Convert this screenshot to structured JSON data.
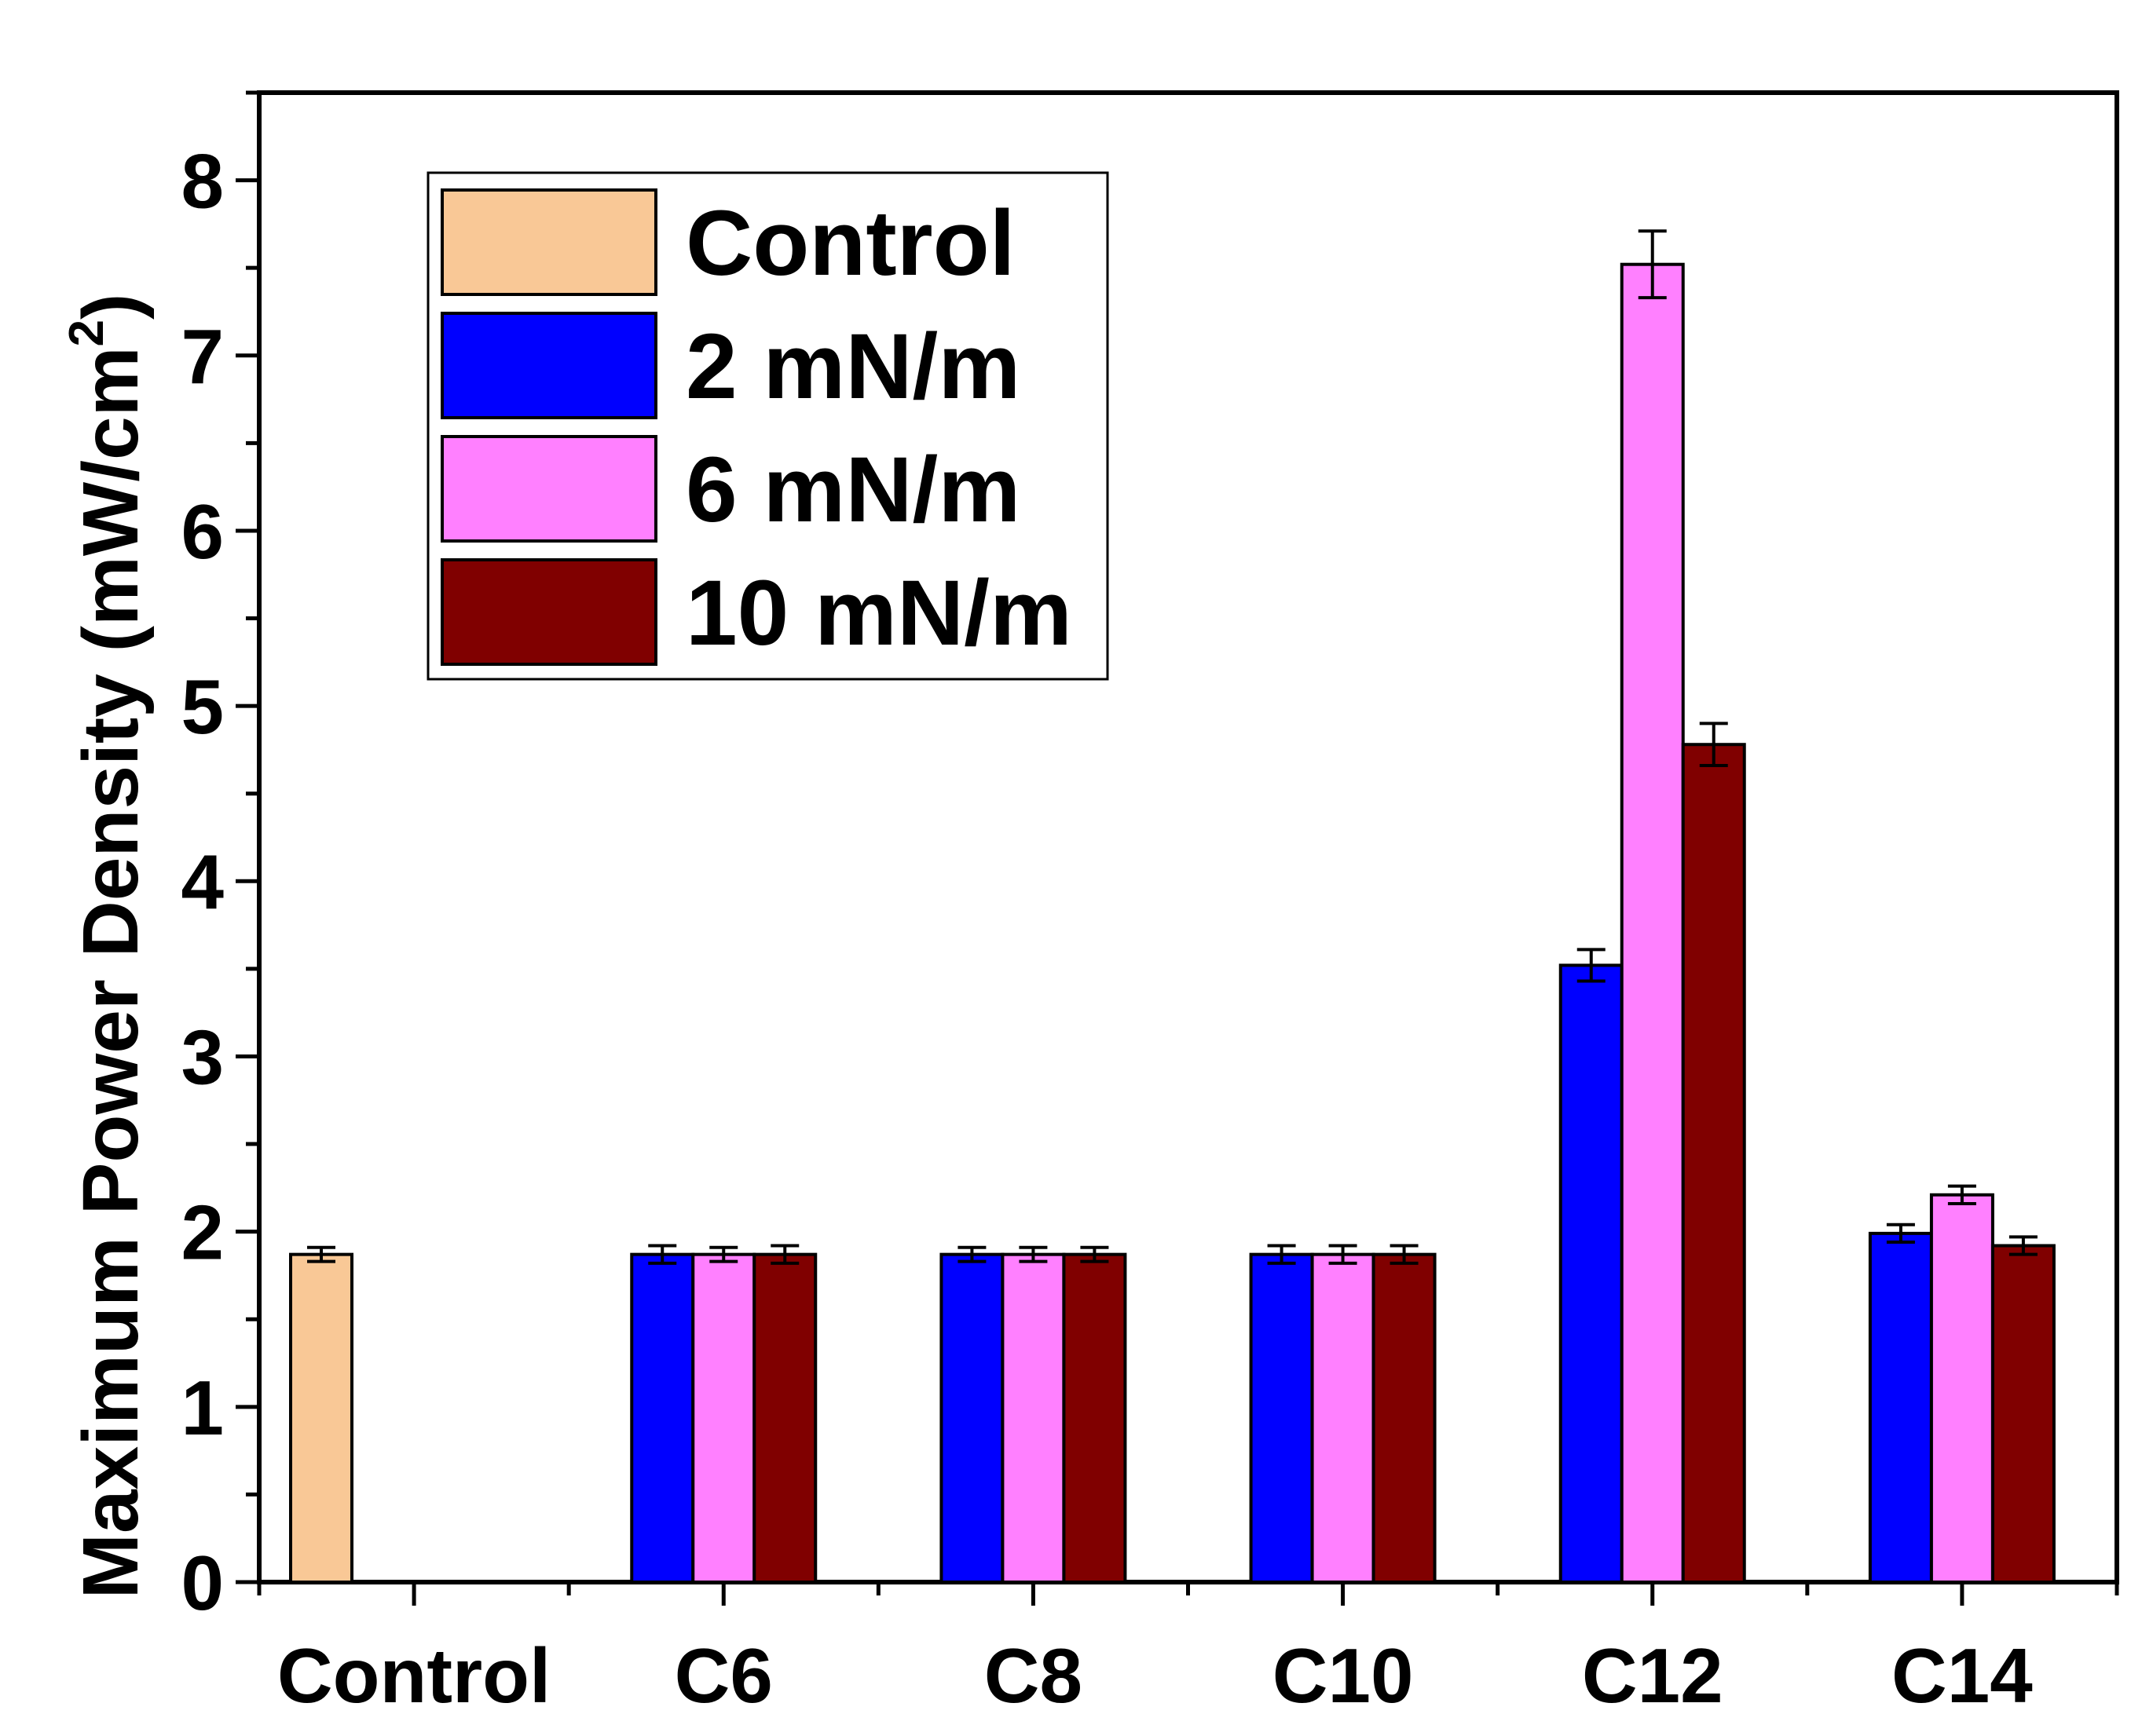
{
  "chart_data": {
    "type": "bar",
    "title": "",
    "xlabel": "",
    "ylabel": {
      "main": "Maximum Power Density (mW/cm",
      "superscript": "2",
      "close": ")"
    },
    "ylim": [
      0,
      8.5
    ],
    "yticks": [
      "0",
      "1",
      "2",
      "3",
      "4",
      "5",
      "6",
      "7",
      "8"
    ],
    "categories": [
      "Control",
      "C6",
      "C8",
      "C10",
      "C12",
      "C14"
    ],
    "legend_position": "top-left",
    "series": [
      {
        "name": "Control",
        "color": "#F9C896",
        "values": [
          1.87,
          null,
          null,
          null,
          null,
          null
        ],
        "errors": [
          0.04,
          null,
          null,
          null,
          null,
          null
        ]
      },
      {
        "name": "2 mN/m",
        "color": "#0000FF",
        "values": [
          null,
          1.87,
          1.87,
          1.87,
          3.52,
          1.99
        ],
        "errors": [
          null,
          0.05,
          0.04,
          0.05,
          0.09,
          0.05
        ]
      },
      {
        "name": "6 mN/m",
        "color": "#FF80FF",
        "values": [
          null,
          1.87,
          1.87,
          1.87,
          7.52,
          2.21
        ],
        "errors": [
          null,
          0.04,
          0.04,
          0.05,
          0.19,
          0.05
        ]
      },
      {
        "name": "10 mN/m",
        "color": "#800000",
        "values": [
          null,
          1.87,
          1.87,
          1.87,
          4.78,
          1.92
        ],
        "errors": [
          null,
          0.05,
          0.04,
          0.05,
          0.12,
          0.05
        ]
      }
    ]
  }
}
